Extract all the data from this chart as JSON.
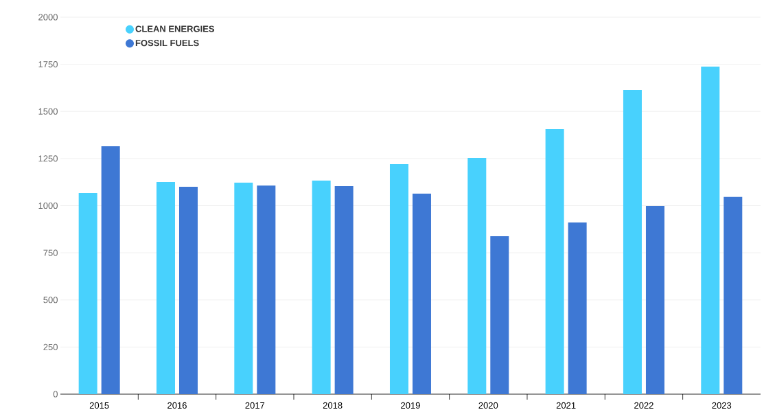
{
  "chart_data": {
    "type": "bar",
    "categories": [
      "2015",
      "2016",
      "2017",
      "2018",
      "2019",
      "2020",
      "2021",
      "2022",
      "2023"
    ],
    "series": [
      {
        "name": "CLEAN ENERGIES",
        "color": "#48d1fd",
        "values": [
          1067,
          1126,
          1122,
          1133,
          1220,
          1253,
          1406,
          1614,
          1738
        ]
      },
      {
        "name": "FOSSIL FUELS",
        "color": "#3e78d4",
        "values": [
          1315,
          1100,
          1107,
          1104,
          1064,
          838,
          911,
          998,
          1046
        ]
      }
    ],
    "ylim": [
      0,
      2000
    ],
    "yticks": [
      0,
      250,
      500,
      750,
      1000,
      1250,
      1500,
      1750,
      2000
    ],
    "grid": "y",
    "legend": "top left",
    "marker": "circle"
  }
}
